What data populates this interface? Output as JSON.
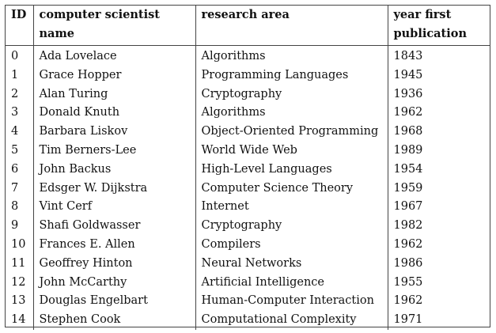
{
  "table": {
    "headers": {
      "id": "ID",
      "name": "computer scientist name",
      "area": "research area",
      "year": "year first publication"
    },
    "rows": [
      {
        "id": "0",
        "name": "Ada Lovelace",
        "area": "Algorithms",
        "year": "1843"
      },
      {
        "id": "1",
        "name": "Grace Hopper",
        "area": "Programming Languages",
        "year": "1945"
      },
      {
        "id": "2",
        "name": "Alan Turing",
        "area": "Cryptography",
        "year": "1936"
      },
      {
        "id": "3",
        "name": "Donald Knuth",
        "area": "Algorithms",
        "year": "1962"
      },
      {
        "id": "4",
        "name": "Barbara Liskov",
        "area": "Object-Oriented Programming",
        "year": "1968"
      },
      {
        "id": "5",
        "name": "Tim Berners-Lee",
        "area": "World Wide Web",
        "year": "1989"
      },
      {
        "id": "6",
        "name": "John Backus",
        "area": "High-Level Languages",
        "year": "1954"
      },
      {
        "id": "7",
        "name": "Edsger W. Dijkstra",
        "area": "Computer Science Theory",
        "year": "1959"
      },
      {
        "id": "8",
        "name": "Vint Cerf",
        "area": "Internet",
        "year": "1967"
      },
      {
        "id": "9",
        "name": "Shafi Goldwasser",
        "area": "Cryptography",
        "year": "1982"
      },
      {
        "id": "10",
        "name": "Frances E. Allen",
        "area": "Compilers",
        "year": "1962"
      },
      {
        "id": "11",
        "name": "Geoffrey Hinton",
        "area": "Neural Networks",
        "year": "1986"
      },
      {
        "id": "12",
        "name": "John McCarthy",
        "area": "Artificial Intelligence",
        "year": "1955"
      },
      {
        "id": "13",
        "name": "Douglas Engelbart",
        "area": "Human-Computer Interaction",
        "year": "1962"
      },
      {
        "id": "14",
        "name": "Stephen Cook",
        "area": "Computational Complexity",
        "year": "1971"
      }
    ]
  }
}
